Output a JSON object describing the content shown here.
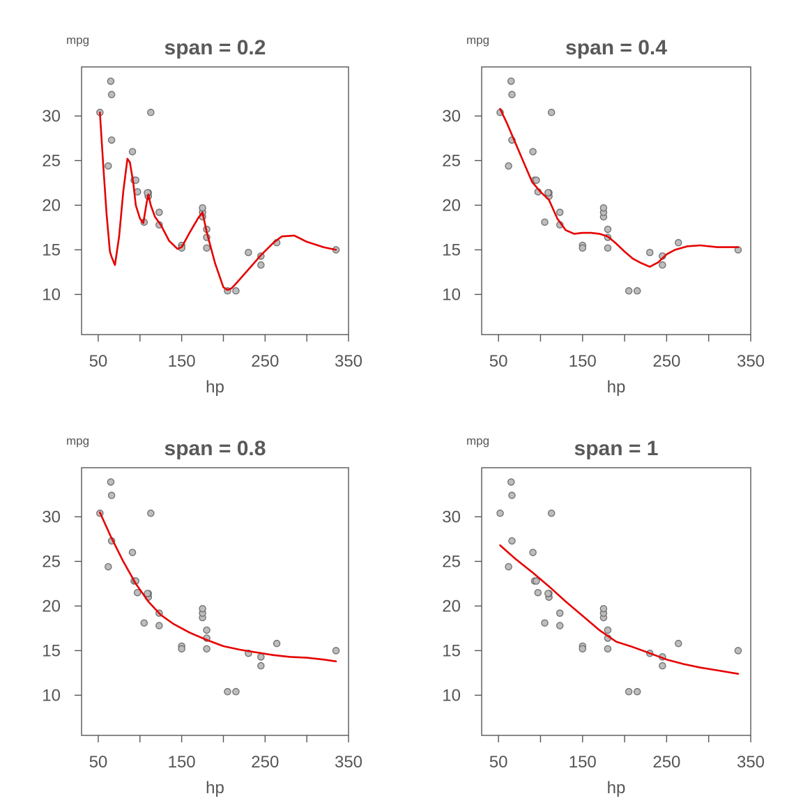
{
  "chart_data": [
    {
      "type": "scatter",
      "title": "span = 0.2",
      "xlabel": "hp",
      "ylabel": "mpg",
      "xlim": [
        30,
        350
      ],
      "ylim": [
        5.5,
        35.5
      ],
      "xticks": [
        50,
        100,
        150,
        200,
        250,
        300,
        350
      ],
      "xtick_labels": [
        "50",
        "",
        "150",
        "",
        "250",
        "",
        "350"
      ],
      "yticks": [
        10,
        15,
        20,
        25,
        30
      ],
      "grid": false,
      "points": {
        "x": [
          110,
          110,
          93,
          110,
          175,
          105,
          245,
          62,
          95,
          123,
          123,
          180,
          180,
          180,
          205,
          215,
          230,
          66,
          52,
          65,
          97,
          150,
          150,
          245,
          175,
          66,
          91,
          113,
          264,
          175,
          335,
          109
        ],
        "y": [
          21,
          21,
          22.8,
          21.4,
          18.7,
          18.1,
          14.3,
          24.4,
          22.8,
          19.2,
          17.8,
          16.4,
          17.3,
          15.2,
          10.4,
          10.4,
          14.7,
          32.4,
          30.4,
          33.9,
          21.5,
          15.5,
          15.2,
          13.3,
          19.2,
          27.3,
          26,
          30.4,
          15.8,
          19.7,
          15,
          21.4
        ]
      },
      "series": [
        {
          "x": [
            52,
            56,
            60,
            64,
            66,
            70,
            75,
            80,
            85,
            88,
            92,
            95,
            100,
            104,
            108,
            110,
            113,
            118,
            125,
            135,
            145,
            150,
            160,
            170,
            175,
            180,
            190,
            200,
            205,
            210,
            215,
            230,
            245,
            260,
            270,
            285,
            300,
            320,
            335
          ],
          "y": [
            30.4,
            24.5,
            19,
            14.8,
            14.2,
            13.3,
            16.5,
            21.5,
            25.2,
            24.8,
            22.5,
            20,
            18.5,
            18,
            20.3,
            21.2,
            20,
            18.7,
            17.8,
            16,
            15.1,
            15.3,
            17,
            18.6,
            19.2,
            17,
            13.5,
            10.8,
            10.5,
            10.7,
            11.2,
            12.8,
            14.4,
            15.8,
            16.5,
            16.6,
            15.9,
            15.3,
            15
          ],
          "color": "#e60000"
        }
      ]
    },
    {
      "type": "scatter",
      "title": "span = 0.4",
      "xlabel": "hp",
      "ylabel": "mpg",
      "xlim": [
        30,
        350
      ],
      "ylim": [
        5.5,
        35.5
      ],
      "xticks": [
        50,
        100,
        150,
        200,
        250,
        300,
        350
      ],
      "xtick_labels": [
        "50",
        "",
        "150",
        "",
        "250",
        "",
        "350"
      ],
      "yticks": [
        10,
        15,
        20,
        25,
        30
      ],
      "grid": false,
      "points": {
        "x": [
          110,
          110,
          93,
          110,
          175,
          105,
          245,
          62,
          95,
          123,
          123,
          180,
          180,
          180,
          205,
          215,
          230,
          66,
          52,
          65,
          97,
          150,
          150,
          245,
          175,
          66,
          91,
          113,
          264,
          175,
          335,
          109
        ],
        "y": [
          21,
          21,
          22.8,
          21.4,
          18.7,
          18.1,
          14.3,
          24.4,
          22.8,
          19.2,
          17.8,
          16.4,
          17.3,
          15.2,
          10.4,
          10.4,
          14.7,
          32.4,
          30.4,
          33.9,
          21.5,
          15.5,
          15.2,
          13.3,
          19.2,
          27.3,
          26,
          30.4,
          15.8,
          19.7,
          15,
          21.4
        ]
      },
      "series": [
        {
          "x": [
            52,
            60,
            70,
            80,
            90,
            100,
            110,
            120,
            130,
            140,
            150,
            160,
            170,
            180,
            190,
            200,
            210,
            220,
            230,
            240,
            250,
            260,
            275,
            290,
            310,
            335
          ],
          "y": [
            30.8,
            29.2,
            27,
            24.8,
            22.6,
            21.5,
            20.6,
            18.5,
            17.2,
            16.8,
            16.9,
            16.9,
            16.8,
            16.5,
            15.7,
            14.8,
            14,
            13.5,
            13.1,
            13.6,
            14.5,
            15,
            15.4,
            15.5,
            15.3,
            15.3
          ],
          "color": "#e60000"
        }
      ]
    },
    {
      "type": "scatter",
      "title": "span = 0.8",
      "xlabel": "hp",
      "ylabel": "mpg",
      "xlim": [
        30,
        350
      ],
      "ylim": [
        5.5,
        35.5
      ],
      "xticks": [
        50,
        100,
        150,
        200,
        250,
        300,
        350
      ],
      "xtick_labels": [
        "50",
        "",
        "150",
        "",
        "250",
        "",
        "350"
      ],
      "yticks": [
        10,
        15,
        20,
        25,
        30
      ],
      "grid": false,
      "points": {
        "x": [
          110,
          110,
          93,
          110,
          175,
          105,
          245,
          62,
          95,
          123,
          123,
          180,
          180,
          180,
          205,
          215,
          230,
          66,
          52,
          65,
          97,
          150,
          150,
          245,
          175,
          66,
          91,
          113,
          264,
          175,
          335,
          109
        ],
        "y": [
          21,
          21,
          22.8,
          21.4,
          18.7,
          18.1,
          14.3,
          24.4,
          22.8,
          19.2,
          17.8,
          16.4,
          17.3,
          15.2,
          10.4,
          10.4,
          14.7,
          32.4,
          30.4,
          33.9,
          21.5,
          15.5,
          15.2,
          13.3,
          19.2,
          27.3,
          26,
          30.4,
          15.8,
          19.7,
          15,
          21.4
        ]
      },
      "series": [
        {
          "x": [
            52,
            65,
            80,
            95,
            110,
            125,
            140,
            160,
            180,
            200,
            220,
            240,
            260,
            280,
            300,
            320,
            335
          ],
          "y": [
            30.5,
            27.8,
            25,
            22.5,
            20.5,
            19,
            18,
            17,
            16.2,
            15.5,
            15.1,
            14.8,
            14.5,
            14.3,
            14.2,
            14,
            13.8
          ],
          "color": "#e60000"
        }
      ]
    },
    {
      "type": "scatter",
      "title": "span = 1",
      "xlabel": "hp",
      "ylabel": "mpg",
      "xlim": [
        30,
        350
      ],
      "ylim": [
        5.5,
        35.5
      ],
      "xticks": [
        50,
        100,
        150,
        200,
        250,
        300,
        350
      ],
      "xtick_labels": [
        "50",
        "",
        "150",
        "",
        "250",
        "",
        "350"
      ],
      "yticks": [
        10,
        15,
        20,
        25,
        30
      ],
      "grid": false,
      "points": {
        "x": [
          110,
          110,
          93,
          110,
          175,
          105,
          245,
          62,
          95,
          123,
          123,
          180,
          180,
          180,
          205,
          215,
          230,
          66,
          52,
          65,
          97,
          150,
          150,
          245,
          175,
          66,
          91,
          113,
          264,
          175,
          335,
          109
        ],
        "y": [
          21,
          21,
          22.8,
          21.4,
          18.7,
          18.1,
          14.3,
          24.4,
          22.8,
          19.2,
          17.8,
          16.4,
          17.3,
          15.2,
          10.4,
          10.4,
          14.7,
          32.4,
          30.4,
          33.9,
          21.5,
          15.5,
          15.2,
          13.3,
          19.2,
          27.3,
          26,
          30.4,
          15.8,
          19.7,
          15,
          21.4
        ]
      },
      "series": [
        {
          "x": [
            52,
            70,
            90,
            110,
            130,
            150,
            170,
            190,
            210,
            230,
            250,
            270,
            290,
            310,
            335
          ],
          "y": [
            26.8,
            25.3,
            23.8,
            22.2,
            20.5,
            18.9,
            17.3,
            16,
            15.4,
            14.7,
            14,
            13.5,
            13.1,
            12.8,
            12.4
          ],
          "color": "#e60000"
        }
      ]
    }
  ]
}
